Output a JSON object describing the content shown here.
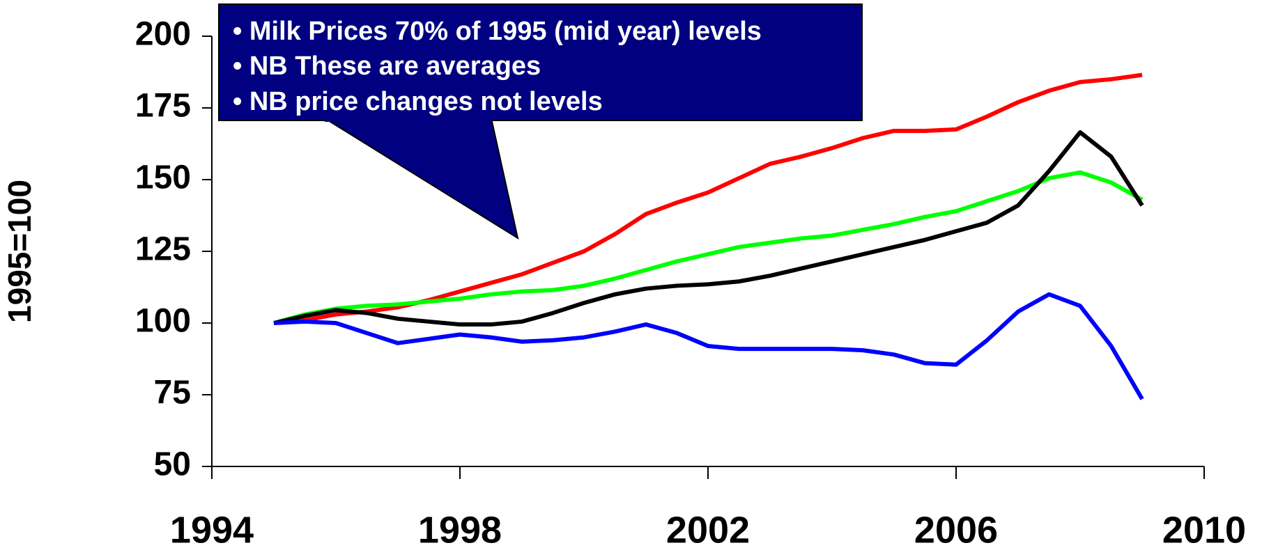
{
  "chart_data": {
    "type": "line",
    "y_label": "1995=100",
    "annotations": [
      "• Milk Prices 70% of 1995 (mid year) levels",
      "• NB These are averages",
      "• NB price changes not levels"
    ],
    "x": [
      1995,
      1995.5,
      1996,
      1996.5,
      1997,
      1997.5,
      1998,
      1998.5,
      1999,
      1999.5,
      2000,
      2000.5,
      2001,
      2001.5,
      2002,
      2002.5,
      2003,
      2003.5,
      2004,
      2004.5,
      2005,
      2005.5,
      2006,
      2006.5,
      2007,
      2007.5,
      2008,
      2008.5,
      2009
    ],
    "series": [
      {
        "color": "#ff0000",
        "values": [
          100,
          101,
          103,
          104,
          105.5,
          108,
          111,
          114,
          117,
          121,
          125,
          131,
          138,
          142,
          145.5,
          150.5,
          155.5,
          158,
          161,
          164.5,
          167,
          167,
          167.5,
          172,
          177,
          181,
          184,
          185,
          186.5
        ]
      },
      {
        "color": "#00ff00",
        "values": [
          100,
          103,
          105,
          106,
          106.5,
          107.5,
          108.5,
          110,
          111,
          111.5,
          113,
          115.5,
          118.5,
          121.5,
          124,
          126.5,
          128,
          129.5,
          130.5,
          132.5,
          134.5,
          137,
          139,
          142.5,
          146,
          150.5,
          152.5,
          149,
          143
        ]
      },
      {
        "color": "#000000",
        "values": [
          100,
          102.5,
          104.5,
          103.5,
          101.5,
          100.5,
          99.5,
          99.5,
          100.5,
          103.5,
          107,
          110,
          112,
          113,
          113.5,
          114.5,
          116.5,
          119,
          121.5,
          124,
          126.5,
          129,
          132,
          135,
          141,
          153,
          166.5,
          158,
          141
        ]
      },
      {
        "color": "#0000ff",
        "values": [
          100,
          100.5,
          100,
          96.5,
          93,
          94.5,
          96,
          95,
          93.5,
          94,
          95,
          97,
          99.5,
          96.5,
          92,
          91,
          91,
          91,
          91,
          90.5,
          89,
          86,
          85.5,
          94,
          104,
          110,
          106,
          92,
          73.5
        ]
      }
    ],
    "xlim": [
      1994,
      2010
    ],
    "xticks": [
      1994,
      1998,
      2002,
      2006,
      2010
    ],
    "ylim": [
      50,
      200
    ],
    "yticks": [
      50,
      75,
      100,
      125,
      150,
      175,
      200
    ]
  }
}
